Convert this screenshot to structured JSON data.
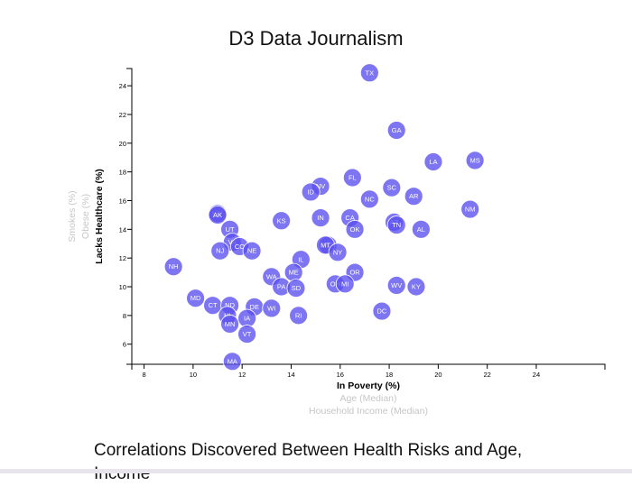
{
  "page": {
    "title": "D3 Data Journalism"
  },
  "analysis": {
    "heading": "Correlations Discovered Between Health Risks and Age, Income"
  },
  "chart_data": {
    "type": "scatter",
    "xlim": [
      7.5,
      26.8
    ],
    "ylim": [
      4.6,
      25.2
    ],
    "x_ticks": [
      8,
      10,
      12,
      14,
      16,
      18,
      20,
      22,
      24
    ],
    "y_ticks": [
      6,
      8,
      10,
      12,
      14,
      16,
      18,
      20,
      22,
      24
    ],
    "x_axis_labels": [
      {
        "text": "In Poverty (%)",
        "active": true
      },
      {
        "text": "Age (Median)",
        "active": false
      },
      {
        "text": "Household Income (Median)",
        "active": false
      }
    ],
    "y_axis_labels": [
      {
        "text": "Lacks Healthcare (%)",
        "active": true
      },
      {
        "text": "Obese (%)",
        "active": false
      },
      {
        "text": "Smokes (%)",
        "active": false
      }
    ],
    "points": [
      {
        "abbr": "TX",
        "x": 17.2,
        "y": 24.9
      },
      {
        "abbr": "GA",
        "x": 18.3,
        "y": 20.9
      },
      {
        "abbr": "LA",
        "x": 19.8,
        "y": 18.7
      },
      {
        "abbr": "MS",
        "x": 21.5,
        "y": 18.8
      },
      {
        "abbr": "FL",
        "x": 16.5,
        "y": 17.6
      },
      {
        "abbr": "NV",
        "x": 15.2,
        "y": 17.0
      },
      {
        "abbr": "ID",
        "x": 14.8,
        "y": 16.6
      },
      {
        "abbr": "SC",
        "x": 18.1,
        "y": 16.9
      },
      {
        "abbr": "NC",
        "x": 17.2,
        "y": 16.1
      },
      {
        "abbr": "AR",
        "x": 19.0,
        "y": 16.3
      },
      {
        "abbr": "NM",
        "x": 21.3,
        "y": 15.4
      },
      {
        "abbr": "WY",
        "x": 11.0,
        "y": 15.1
      },
      {
        "abbr": "AK",
        "x": 11.0,
        "y": 15.0
      },
      {
        "abbr": "KS",
        "x": 13.6,
        "y": 14.6
      },
      {
        "abbr": "IN",
        "x": 15.2,
        "y": 14.8
      },
      {
        "abbr": "CA",
        "x": 16.4,
        "y": 14.8
      },
      {
        "abbr": "AZ",
        "x": 18.2,
        "y": 14.5
      },
      {
        "abbr": "TN",
        "x": 18.3,
        "y": 14.3
      },
      {
        "abbr": "OK",
        "x": 16.6,
        "y": 14.0
      },
      {
        "abbr": "AL",
        "x": 19.3,
        "y": 14.0
      },
      {
        "abbr": "UT",
        "x": 11.5,
        "y": 14.0
      },
      {
        "abbr": "VA",
        "x": 11.6,
        "y": 13.1
      },
      {
        "abbr": "CO",
        "x": 11.9,
        "y": 12.8
      },
      {
        "abbr": "NJ",
        "x": 11.1,
        "y": 12.5
      },
      {
        "abbr": "NE",
        "x": 12.4,
        "y": 12.5
      },
      {
        "abbr": "MO",
        "x": 15.5,
        "y": 12.9
      },
      {
        "abbr": "MT",
        "x": 15.4,
        "y": 12.9
      },
      {
        "abbr": "NY",
        "x": 15.9,
        "y": 12.4
      },
      {
        "abbr": "IL",
        "x": 14.4,
        "y": 11.9
      },
      {
        "abbr": "NH",
        "x": 9.2,
        "y": 11.4
      },
      {
        "abbr": "ME",
        "x": 14.1,
        "y": 11.0
      },
      {
        "abbr": "OR",
        "x": 16.6,
        "y": 11.0
      },
      {
        "abbr": "WA",
        "x": 13.2,
        "y": 10.7
      },
      {
        "abbr": "PA",
        "x": 13.6,
        "y": 10.0
      },
      {
        "abbr": "SD",
        "x": 14.2,
        "y": 9.9
      },
      {
        "abbr": "OH",
        "x": 15.8,
        "y": 10.2
      },
      {
        "abbr": "MI",
        "x": 16.2,
        "y": 10.2
      },
      {
        "abbr": "WV",
        "x": 18.3,
        "y": 10.1
      },
      {
        "abbr": "KY",
        "x": 19.1,
        "y": 10.0
      },
      {
        "abbr": "MD",
        "x": 10.1,
        "y": 9.2
      },
      {
        "abbr": "CT",
        "x": 10.8,
        "y": 8.7
      },
      {
        "abbr": "ND",
        "x": 11.5,
        "y": 8.7
      },
      {
        "abbr": "DE",
        "x": 12.5,
        "y": 8.6
      },
      {
        "abbr": "WI",
        "x": 13.2,
        "y": 8.5
      },
      {
        "abbr": "DC",
        "x": 17.7,
        "y": 8.3
      },
      {
        "abbr": "HI",
        "x": 11.4,
        "y": 8.0
      },
      {
        "abbr": "RI",
        "x": 14.3,
        "y": 8.0
      },
      {
        "abbr": "IA",
        "x": 12.2,
        "y": 7.8
      },
      {
        "abbr": "MN",
        "x": 11.5,
        "y": 7.4
      },
      {
        "abbr": "VT",
        "x": 12.2,
        "y": 6.7
      },
      {
        "abbr": "MA",
        "x": 11.6,
        "y": 4.8
      }
    ]
  }
}
